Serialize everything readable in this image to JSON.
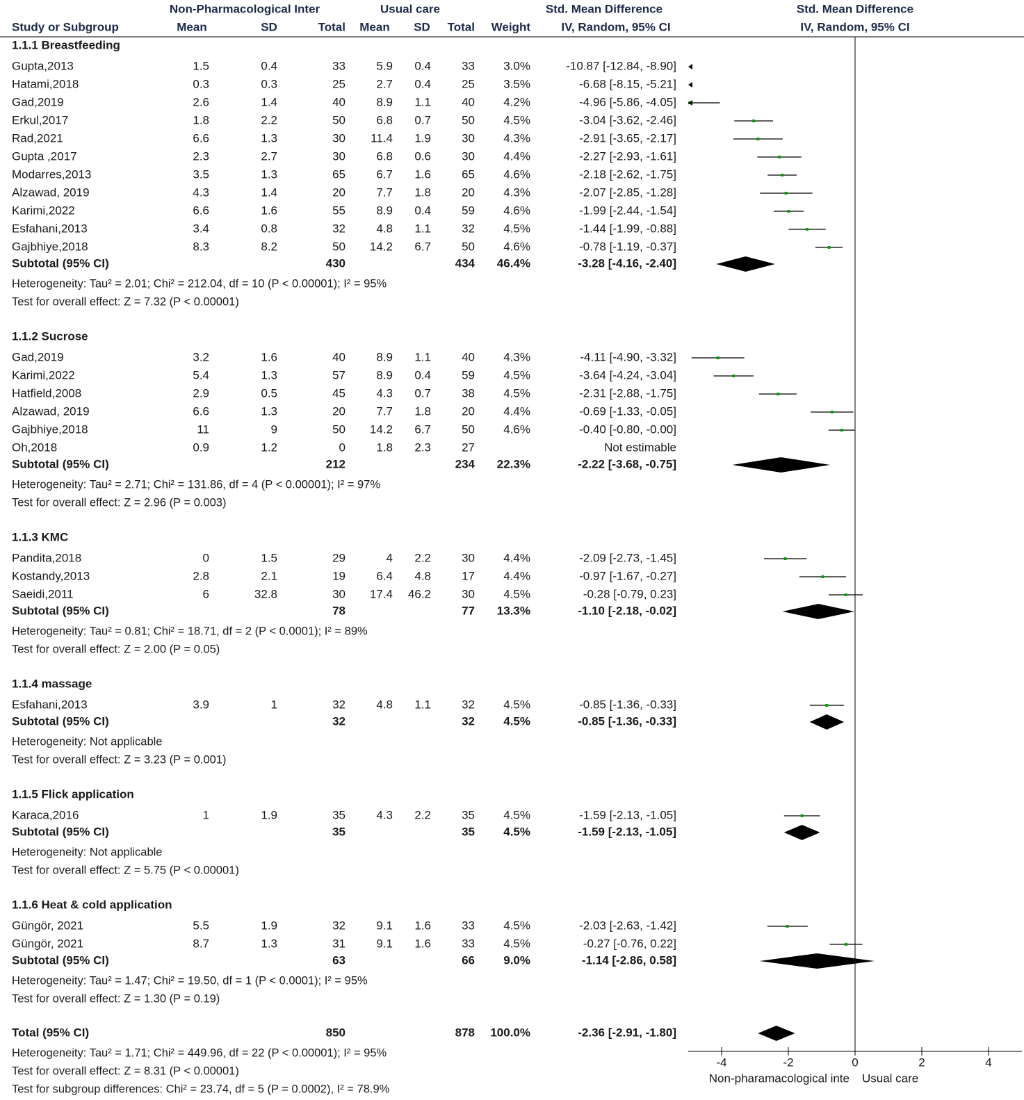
{
  "chart_data": {
    "type": "forest",
    "xlim": [
      -5,
      5
    ],
    "xticks": [
      -4,
      -2,
      0,
      2,
      4
    ],
    "x_label_left": "Non-pharamacological inte",
    "x_label_right": "Usual care",
    "point_color": "#00a000",
    "line_color": "#000000",
    "header": {
      "group1": "Non-Pharmacological Inter",
      "group2": "Usual care",
      "effect": "Std. Mean Difference",
      "plot": "Std. Mean Difference",
      "plot_method": "IV, Random, 95% CI",
      "columns": [
        "Study or Subgroup",
        "Mean",
        "SD",
        "Total",
        "Mean",
        "SD",
        "Total",
        "Weight",
        "IV, Random, 95% CI"
      ]
    },
    "subgroups": [
      {
        "title": "1.1.1 Breastfeeding",
        "studies": [
          {
            "name": "Gupta,2013",
            "mean1": "1.5",
            "sd1": "0.4",
            "n1": "33",
            "mean2": "5.9",
            "sd2": "0.4",
            "n2": "33",
            "weight": "3.0%",
            "ci_label": "-10.87 [-12.84, -8.90]",
            "values": [
              -10.87,
              -12.84,
              -8.9
            ]
          },
          {
            "name": "Hatami,2018",
            "mean1": "0.3",
            "sd1": "0.3",
            "n1": "25",
            "mean2": "2.7",
            "sd2": "0.4",
            "n2": "25",
            "weight": "3.5%",
            "ci_label": "-6.68 [-8.15, -5.21]",
            "values": [
              -6.68,
              -8.15,
              -5.21
            ]
          },
          {
            "name": "Gad,2019",
            "mean1": "2.6",
            "sd1": "1.4",
            "n1": "40",
            "mean2": "8.9",
            "sd2": "1.1",
            "n2": "40",
            "weight": "4.2%",
            "ci_label": "-4.96 [-5.86, -4.05]",
            "values": [
              -4.96,
              -5.86,
              -4.05
            ]
          },
          {
            "name": "Erkul,2017",
            "mean1": "1.8",
            "sd1": "2.2",
            "n1": "50",
            "mean2": "6.8",
            "sd2": "0.7",
            "n2": "50",
            "weight": "4.5%",
            "ci_label": "-3.04 [-3.62, -2.46]",
            "values": [
              -3.04,
              -3.62,
              -2.46
            ]
          },
          {
            "name": "Rad,2021",
            "mean1": "6.6",
            "sd1": "1.3",
            "n1": "30",
            "mean2": "11.4",
            "sd2": "1.9",
            "n2": "30",
            "weight": "4.3%",
            "ci_label": "-2.91 [-3.65, -2.17]",
            "values": [
              -2.91,
              -3.65,
              -2.17
            ]
          },
          {
            "name": "Gupta ,2017",
            "mean1": "2.3",
            "sd1": "2.7",
            "n1": "30",
            "mean2": "6.8",
            "sd2": "0.6",
            "n2": "30",
            "weight": "4.4%",
            "ci_label": "-2.27 [-2.93, -1.61]",
            "values": [
              -2.27,
              -2.93,
              -1.61
            ]
          },
          {
            "name": "Modarres,2013",
            "mean1": "3.5",
            "sd1": "1.3",
            "n1": "65",
            "mean2": "6.7",
            "sd2": "1.6",
            "n2": "65",
            "weight": "4.6%",
            "ci_label": "-2.18 [-2.62, -1.75]",
            "values": [
              -2.18,
              -2.62,
              -1.75
            ]
          },
          {
            "name": "Alzawad, 2019",
            "mean1": "4.3",
            "sd1": "1.4",
            "n1": "20",
            "mean2": "7.7",
            "sd2": "1.8",
            "n2": "20",
            "weight": "4.3%",
            "ci_label": "-2.07 [-2.85, -1.28]",
            "values": [
              -2.07,
              -2.85,
              -1.28
            ]
          },
          {
            "name": "Karimi,2022",
            "mean1": "6.6",
            "sd1": "1.6",
            "n1": "55",
            "mean2": "8.9",
            "sd2": "0.4",
            "n2": "59",
            "weight": "4.6%",
            "ci_label": "-1.99 [-2.44, -1.54]",
            "values": [
              -1.99,
              -2.44,
              -1.54
            ]
          },
          {
            "name": "Esfahani,2013",
            "mean1": "3.4",
            "sd1": "0.8",
            "n1": "32",
            "mean2": "4.8",
            "sd2": "1.1",
            "n2": "32",
            "weight": "4.5%",
            "ci_label": "-1.44 [-1.99, -0.88]",
            "values": [
              -1.44,
              -1.99,
              -0.88
            ]
          },
          {
            "name": "Gajbhiye,2018",
            "mean1": "8.3",
            "sd1": "8.2",
            "n1": "50",
            "mean2": "14.2",
            "sd2": "6.7",
            "n2": "50",
            "weight": "4.6%",
            "ci_label": "-0.78 [-1.19, -0.37]",
            "values": [
              -0.78,
              -1.19,
              -0.37
            ]
          }
        ],
        "subtotal": {
          "name": "Subtotal (95% CI)",
          "n1": "430",
          "n2": "434",
          "weight": "46.4%",
          "ci_label": "-3.28 [-4.16, -2.40]",
          "values": [
            -3.28,
            -4.16,
            -2.4
          ]
        },
        "heterogeneity": "Heterogeneity: Tau² = 2.01; Chi² = 212.04, df = 10 (P < 0.00001); I² = 95%",
        "overall": "Test for overall effect: Z = 7.32 (P < 0.00001)"
      },
      {
        "title": "1.1.2 Sucrose",
        "studies": [
          {
            "name": "Gad,2019",
            "mean1": "3.2",
            "sd1": "1.6",
            "n1": "40",
            "mean2": "8.9",
            "sd2": "1.1",
            "n2": "40",
            "weight": "4.3%",
            "ci_label": "-4.11 [-4.90, -3.32]",
            "values": [
              -4.11,
              -4.9,
              -3.32
            ]
          },
          {
            "name": "Karimi,2022",
            "mean1": "5.4",
            "sd1": "1.3",
            "n1": "57",
            "mean2": "8.9",
            "sd2": "0.4",
            "n2": "59",
            "weight": "4.5%",
            "ci_label": "-3.64 [-4.24, -3.04]",
            "values": [
              -3.64,
              -4.24,
              -3.04
            ]
          },
          {
            "name": "Hatfield,2008",
            "mean1": "2.9",
            "sd1": "0.5",
            "n1": "45",
            "mean2": "4.3",
            "sd2": "0.7",
            "n2": "38",
            "weight": "4.5%",
            "ci_label": "-2.31 [-2.88, -1.75]",
            "values": [
              -2.31,
              -2.88,
              -1.75
            ]
          },
          {
            "name": "Alzawad, 2019",
            "mean1": "6.6",
            "sd1": "1.3",
            "n1": "20",
            "mean2": "7.7",
            "sd2": "1.8",
            "n2": "20",
            "weight": "4.4%",
            "ci_label": "-0.69 [-1.33, -0.05]",
            "values": [
              -0.69,
              -1.33,
              -0.05
            ]
          },
          {
            "name": "Gajbhiye,2018",
            "mean1": "11",
            "sd1": "9",
            "n1": "50",
            "mean2": "14.2",
            "sd2": "6.7",
            "n2": "50",
            "weight": "4.6%",
            "ci_label": "-0.40 [-0.80, -0.00]",
            "values": [
              -0.4,
              -0.8,
              -0.0
            ]
          },
          {
            "name": "Oh,2018",
            "mean1": "0.9",
            "sd1": "1.2",
            "n1": "0",
            "mean2": "1.8",
            "sd2": "2.3",
            "n2": "27",
            "ci_label": "Not estimable"
          }
        ],
        "subtotal": {
          "name": "Subtotal (95% CI)",
          "n1": "212",
          "n2": "234",
          "weight": "22.3%",
          "ci_label": "-2.22 [-3.68, -0.75]",
          "values": [
            -2.22,
            -3.68,
            -0.75
          ]
        },
        "heterogeneity": "Heterogeneity: Tau² = 2.71; Chi² = 131.86, df = 4 (P < 0.00001); I² = 97%",
        "overall": "Test for overall effect: Z = 2.96 (P = 0.003)"
      },
      {
        "title": "1.1.3 KMC",
        "studies": [
          {
            "name": "Pandita,2018",
            "mean1": "0",
            "sd1": "1.5",
            "n1": "29",
            "mean2": "4",
            "sd2": "2.2",
            "n2": "30",
            "weight": "4.4%",
            "ci_label": "-2.09 [-2.73, -1.45]",
            "values": [
              -2.09,
              -2.73,
              -1.45
            ]
          },
          {
            "name": "Kostandy,2013",
            "mean1": "2.8",
            "sd1": "2.1",
            "n1": "19",
            "mean2": "6.4",
            "sd2": "4.8",
            "n2": "17",
            "weight": "4.4%",
            "ci_label": "-0.97 [-1.67, -0.27]",
            "values": [
              -0.97,
              -1.67,
              -0.27
            ]
          },
          {
            "name": "Saeidi,2011",
            "mean1": "6",
            "sd1": "32.8",
            "n1": "30",
            "mean2": "17.4",
            "sd2": "46.2",
            "n2": "30",
            "weight": "4.5%",
            "ci_label": "-0.28 [-0.79, 0.23]",
            "values": [
              -0.28,
              -0.79,
              0.23
            ]
          }
        ],
        "subtotal": {
          "name": "Subtotal (95% CI)",
          "n1": "78",
          "n2": "77",
          "weight": "13.3%",
          "ci_label": "-1.10 [-2.18, -0.02]",
          "values": [
            -1.1,
            -2.18,
            -0.02
          ]
        },
        "heterogeneity": "Heterogeneity: Tau² = 0.81; Chi² = 18.71, df = 2 (P < 0.0001); I² = 89%",
        "overall": "Test for overall effect: Z = 2.00 (P = 0.05)"
      },
      {
        "title": "1.1.4 massage",
        "studies": [
          {
            "name": "Esfahani,2013",
            "mean1": "3.9",
            "sd1": "1",
            "n1": "32",
            "mean2": "4.8",
            "sd2": "1.1",
            "n2": "32",
            "weight": "4.5%",
            "ci_label": "-0.85 [-1.36, -0.33]",
            "values": [
              -0.85,
              -1.36,
              -0.33
            ]
          }
        ],
        "subtotal": {
          "name": "Subtotal (95% CI)",
          "n1": "32",
          "n2": "32",
          "weight": "4.5%",
          "ci_label": "-0.85 [-1.36, -0.33]",
          "values": [
            -0.85,
            -1.36,
            -0.33
          ]
        },
        "heterogeneity": "Heterogeneity: Not applicable",
        "overall": "Test for overall effect: Z = 3.23 (P = 0.001)"
      },
      {
        "title": "1.1.5 Flick application",
        "studies": [
          {
            "name": "Karaca,2016",
            "mean1": "1",
            "sd1": "1.9",
            "n1": "35",
            "mean2": "4.3",
            "sd2": "2.2",
            "n2": "35",
            "weight": "4.5%",
            "ci_label": "-1.59 [-2.13, -1.05]",
            "values": [
              -1.59,
              -2.13,
              -1.05
            ]
          }
        ],
        "subtotal": {
          "name": "Subtotal (95% CI)",
          "n1": "35",
          "n2": "35",
          "weight": "4.5%",
          "ci_label": "-1.59 [-2.13, -1.05]",
          "values": [
            -1.59,
            -2.13,
            -1.05
          ]
        },
        "heterogeneity": "Heterogeneity: Not applicable",
        "overall": "Test for overall effect: Z = 5.75 (P < 0.00001)"
      },
      {
        "title": "1.1.6 Heat & cold application",
        "studies": [
          {
            "name": "Güngör, 2021",
            "mean1": "5.5",
            "sd1": "1.9",
            "n1": "32",
            "mean2": "9.1",
            "sd2": "1.6",
            "n2": "33",
            "weight": "4.5%",
            "ci_label": "-2.03 [-2.63, -1.42]",
            "values": [
              -2.03,
              -2.63,
              -1.42
            ]
          },
          {
            "name": "Güngör, 2021",
            "mean1": "8.7",
            "sd1": "1.3",
            "n1": "31",
            "mean2": "9.1",
            "sd2": "1.6",
            "n2": "33",
            "weight": "4.5%",
            "ci_label": "-0.27 [-0.76, 0.22]",
            "values": [
              -0.27,
              -0.76,
              0.22
            ]
          }
        ],
        "subtotal": {
          "name": "Subtotal (95% CI)",
          "n1": "63",
          "n2": "66",
          "weight": "9.0%",
          "ci_label": "-1.14 [-2.86, 0.58]",
          "values": [
            -1.14,
            -2.86,
            0.58
          ]
        },
        "heterogeneity": "Heterogeneity: Tau² = 1.47; Chi² = 19.50, df = 1 (P < 0.0001); I² = 95%",
        "overall": "Test for overall effect: Z = 1.30 (P = 0.19)"
      }
    ],
    "total": {
      "name": "Total (95% CI)",
      "n1": "850",
      "n2": "878",
      "weight": "100.0%",
      "ci_label": "-2.36 [-2.91, -1.80]",
      "values": [
        -2.36,
        -2.91,
        -1.8
      ]
    },
    "total_heterogeneity": "Heterogeneity: Tau² = 1.71; Chi² = 449.96, df = 22 (P < 0.00001); I² = 95%",
    "total_overall": "Test for overall effect: Z = 8.31 (P < 0.00001)",
    "subgroup_differences": "Test for subgroup differences: Chi² = 23.74, df = 5 (P = 0.0002), I² = 78.9%"
  }
}
